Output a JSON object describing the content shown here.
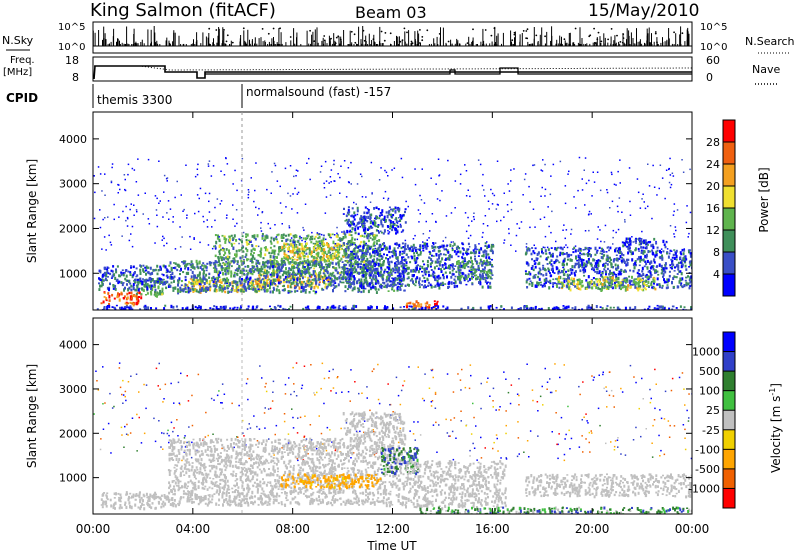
{
  "header": {
    "station": "King Salmon (fitACF)",
    "beam": "Beam 03",
    "date": "15/May/2010"
  },
  "panel_labels": {
    "nsky": "N.Sky",
    "nsearch": "N.Search",
    "freq_line1": "Freq.",
    "freq_line2": "[MHz]",
    "nave": "Nave",
    "cpid": "CPID",
    "nsky_ticks": [
      "10^5",
      "10^0"
    ],
    "nsearch_ticks": [
      "10^5",
      "10^0"
    ],
    "freq_ticks": [
      "18",
      "8"
    ],
    "nave_ticks": [
      "60",
      "0"
    ]
  },
  "cpid_segments": [
    {
      "label": "themis 3300",
      "start_hour": 0
    },
    {
      "label": "normalsound (fast) -157",
      "start_hour": 6
    }
  ],
  "colors": {
    "power": [
      "#0000ff",
      "#3a4fc6",
      "#3f8f5a",
      "#5fb44d",
      "#f0e030",
      "#f4a020",
      "#f06010",
      "#ff0000"
    ],
    "velocity": [
      "#ff0000",
      "#f06000",
      "#ffa500",
      "#f0d000",
      "#c0c0c0",
      "#40c040",
      "#2f7f2f",
      "#3040c8",
      "#0000ff"
    ],
    "ground": "#bdbdbd"
  },
  "chart_data": [
    {
      "type": "heatmap",
      "name": "power",
      "xlabel": "",
      "ylabel": "Slant Range [km]",
      "x_range_hours": [
        0,
        24
      ],
      "ylim": [
        180,
        4600
      ],
      "yticks": [
        1000,
        2000,
        3000,
        4000
      ],
      "colorbar": {
        "label": "Power [dB]",
        "range": [
          0,
          32
        ],
        "ticks": [
          4,
          8,
          12,
          16,
          20,
          24,
          28
        ]
      },
      "features": [
        {
          "start_hour": 0.3,
          "end_hour": 1.9,
          "range_min_km": 330,
          "range_max_km": 600,
          "level_db": 27
        },
        {
          "start_hour": 1.6,
          "end_hour": 2.8,
          "range_min_km": 500,
          "range_max_km": 900,
          "level_db": 12
        },
        {
          "start_hour": 0.2,
          "end_hour": 3.0,
          "range_min_km": 650,
          "range_max_km": 1200,
          "level_db": 6
        },
        {
          "start_hour": 3.5,
          "end_hour": 7.0,
          "range_min_km": 600,
          "range_max_km": 900,
          "level_db": 18
        },
        {
          "start_hour": 6.5,
          "end_hour": 9.5,
          "range_min_km": 700,
          "range_max_km": 1000,
          "level_db": 20
        },
        {
          "start_hour": 4.8,
          "end_hour": 11.5,
          "range_min_km": 1000,
          "range_max_km": 1900,
          "level_db": 12
        },
        {
          "start_hour": 7.5,
          "end_hour": 10.0,
          "range_min_km": 1300,
          "range_max_km": 1700,
          "level_db": 18
        },
        {
          "start_hour": 10.0,
          "end_hour": 12.5,
          "range_min_km": 1900,
          "range_max_km": 2500,
          "level_db": 6
        },
        {
          "start_hour": 3.0,
          "end_hour": 12.5,
          "range_min_km": 600,
          "range_max_km": 1300,
          "level_db": 8
        },
        {
          "start_hour": 10.0,
          "end_hour": 16.0,
          "range_min_km": 700,
          "range_max_km": 1700,
          "level_db": 6
        },
        {
          "start_hour": 12.5,
          "end_hour": 13.8,
          "range_min_km": 250,
          "range_max_km": 400,
          "level_db": 25
        },
        {
          "start_hour": 14.5,
          "end_hour": 16.0,
          "range_min_km": 900,
          "range_max_km": 1300,
          "level_db": 10
        },
        {
          "start_hour": 17.3,
          "end_hour": 24.0,
          "range_min_km": 700,
          "range_max_km": 1600,
          "level_db": 6
        },
        {
          "start_hour": 18.5,
          "end_hour": 22.5,
          "range_min_km": 650,
          "range_max_km": 950,
          "level_db": 16
        },
        {
          "start_hour": 21.0,
          "end_hour": 23.0,
          "range_min_km": 1600,
          "range_max_km": 1800,
          "level_db": 5
        },
        {
          "start_hour": 0.0,
          "end_hour": 24.0,
          "range_min_km": 180,
          "range_max_km": 300,
          "level_db": 4
        }
      ]
    },
    {
      "type": "heatmap",
      "name": "velocity",
      "xlabel": "Time UT",
      "ylabel": "Slant Range [km]",
      "x_range_hours": [
        0,
        24
      ],
      "xticks": [
        "00:00",
        "04:00",
        "08:00",
        "12:00",
        "16:00",
        "20:00",
        "00:00"
      ],
      "ylim": [
        180,
        4600
      ],
      "yticks": [
        1000,
        2000,
        3000,
        4000
      ],
      "colorbar": {
        "label": "Velocity [m s^-1]",
        "ticks": [
          "1000",
          "500",
          "100",
          "25",
          "-25",
          "-100",
          "-500",
          "-1000"
        ]
      },
      "features": [
        {
          "start_hour": 0.2,
          "end_hour": 3.0,
          "range_min_km": 330,
          "range_max_km": 700,
          "velocity": 0
        },
        {
          "start_hour": 3.0,
          "end_hour": 12.5,
          "range_min_km": 400,
          "range_max_km": 1900,
          "velocity": 0
        },
        {
          "start_hour": 7.5,
          "end_hour": 11.5,
          "range_min_km": 800,
          "range_max_km": 1100,
          "velocity": -150
        },
        {
          "start_hour": 11.5,
          "end_hour": 13.0,
          "range_min_km": 1100,
          "range_max_km": 1700,
          "velocity": 100
        },
        {
          "start_hour": 10.0,
          "end_hour": 12.5,
          "range_min_km": 1900,
          "range_max_km": 2500,
          "velocity": 0
        },
        {
          "start_hour": 12.5,
          "end_hour": 16.5,
          "range_min_km": 350,
          "range_max_km": 1400,
          "velocity": 0
        },
        {
          "start_hour": 17.3,
          "end_hour": 24.0,
          "range_min_km": 600,
          "range_max_km": 1100,
          "velocity": 0
        },
        {
          "start_hour": 13.0,
          "end_hour": 24.0,
          "range_min_km": 180,
          "range_max_km": 350,
          "velocity": 60
        }
      ]
    }
  ]
}
